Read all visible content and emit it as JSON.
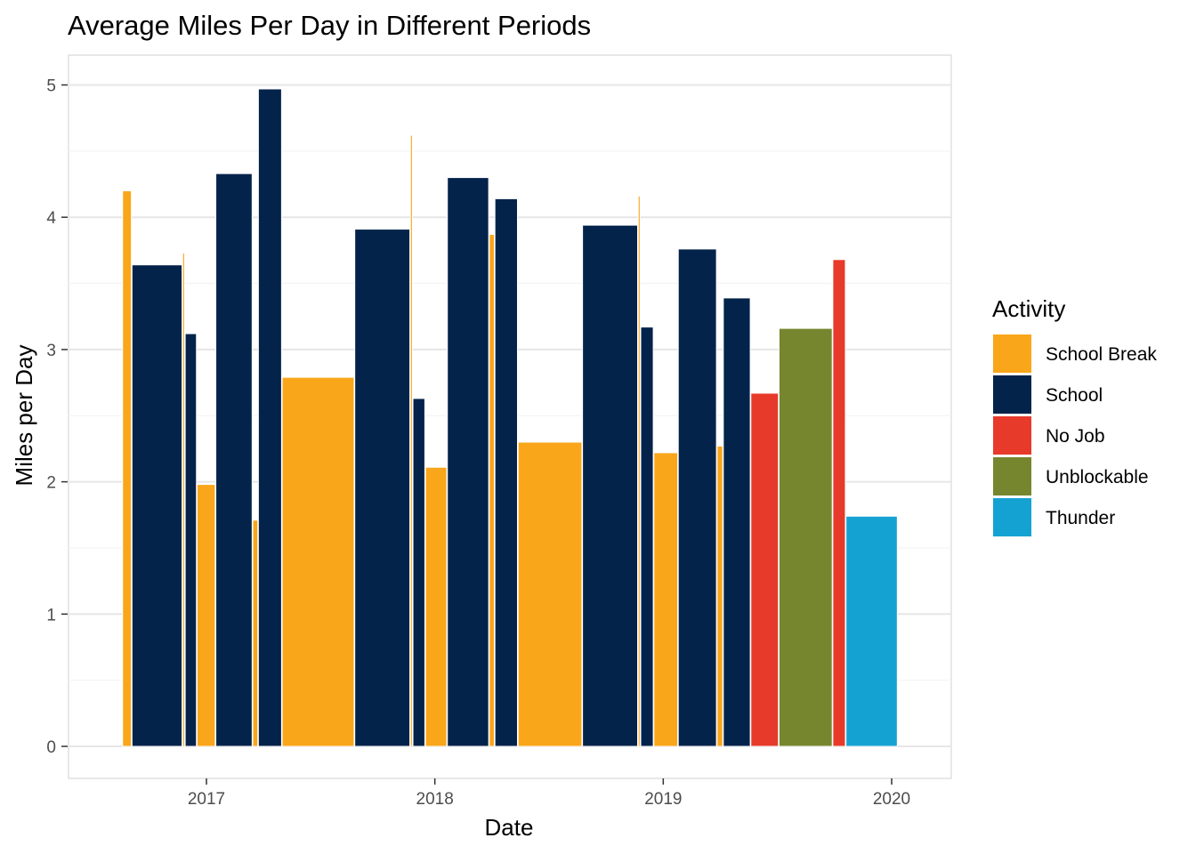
{
  "chart_data": {
    "type": "bar",
    "title": "Average Miles Per Day in Different Periods",
    "xlabel": "Date",
    "ylabel": "Miles per Day",
    "ylim": [
      0,
      5
    ],
    "y_ticks": [
      0,
      1,
      2,
      3,
      4,
      5
    ],
    "x_ticks": [
      "2017",
      "2018",
      "2019",
      "2020"
    ],
    "grid": "major and minor horizontal",
    "legend": {
      "title": "Activity",
      "position": "right",
      "entries": [
        {
          "name": "School Break",
          "color": "#F9A61A"
        },
        {
          "name": "School",
          "color": "#03234B"
        },
        {
          "name": "No Job",
          "color": "#E73A2A"
        },
        {
          "name": "Unblockable",
          "color": "#76862F"
        },
        {
          "name": "Thunder",
          "color": "#14A2D3"
        }
      ]
    },
    "bars": [
      {
        "start": "2016-08-20",
        "end": "2016-09-03",
        "value": 4.2,
        "activity": "School Break"
      },
      {
        "start": "2016-09-04",
        "end": "2016-11-23",
        "value": 3.64,
        "activity": "School"
      },
      {
        "start": "2016-11-24",
        "end": "2016-11-27",
        "value": 3.73,
        "activity": "School Break"
      },
      {
        "start": "2016-11-28",
        "end": "2016-12-16",
        "value": 3.12,
        "activity": "School"
      },
      {
        "start": "2016-12-17",
        "end": "2017-01-15",
        "value": 1.98,
        "activity": "School Break"
      },
      {
        "start": "2017-01-16",
        "end": "2017-03-15",
        "value": 4.33,
        "activity": "School"
      },
      {
        "start": "2017-03-16",
        "end": "2017-03-24",
        "value": 1.71,
        "activity": "School Break"
      },
      {
        "start": "2017-03-25",
        "end": "2017-05-01",
        "value": 4.97,
        "activity": "School"
      },
      {
        "start": "2017-05-02",
        "end": "2017-08-25",
        "value": 2.79,
        "activity": "School Break"
      },
      {
        "start": "2017-08-26",
        "end": "2017-11-22",
        "value": 3.91,
        "activity": "School"
      },
      {
        "start": "2017-11-23",
        "end": "2017-11-26",
        "value": 4.62,
        "activity": "School Break"
      },
      {
        "start": "2017-11-27",
        "end": "2017-12-16",
        "value": 2.63,
        "activity": "School"
      },
      {
        "start": "2017-12-17",
        "end": "2018-01-20",
        "value": 2.11,
        "activity": "School Break"
      },
      {
        "start": "2018-01-21",
        "end": "2018-03-28",
        "value": 4.3,
        "activity": "School"
      },
      {
        "start": "2018-03-29",
        "end": "2018-04-06",
        "value": 3.87,
        "activity": "School Break"
      },
      {
        "start": "2018-04-07",
        "end": "2018-05-13",
        "value": 4.14,
        "activity": "School"
      },
      {
        "start": "2018-05-14",
        "end": "2018-08-24",
        "value": 2.3,
        "activity": "School Break"
      },
      {
        "start": "2018-08-25",
        "end": "2018-11-21",
        "value": 3.94,
        "activity": "School"
      },
      {
        "start": "2018-11-22",
        "end": "2018-11-25",
        "value": 4.16,
        "activity": "School Break"
      },
      {
        "start": "2018-11-26",
        "end": "2018-12-16",
        "value": 3.17,
        "activity": "School"
      },
      {
        "start": "2018-12-17",
        "end": "2019-01-24",
        "value": 2.22,
        "activity": "School Break"
      },
      {
        "start": "2019-01-25",
        "end": "2019-03-27",
        "value": 3.76,
        "activity": "School"
      },
      {
        "start": "2019-03-28",
        "end": "2019-04-06",
        "value": 2.27,
        "activity": "School Break"
      },
      {
        "start": "2019-04-07",
        "end": "2019-05-20",
        "value": 3.39,
        "activity": "School"
      },
      {
        "start": "2019-05-21",
        "end": "2019-07-04",
        "value": 2.67,
        "activity": "No Job"
      },
      {
        "start": "2019-07-05",
        "end": "2019-09-28",
        "value": 3.16,
        "activity": "Unblockable"
      },
      {
        "start": "2019-09-29",
        "end": "2019-10-19",
        "value": 3.68,
        "activity": "No Job"
      },
      {
        "start": "2019-10-20",
        "end": "2020-01-10",
        "value": 1.74,
        "activity": "Thunder"
      }
    ]
  }
}
